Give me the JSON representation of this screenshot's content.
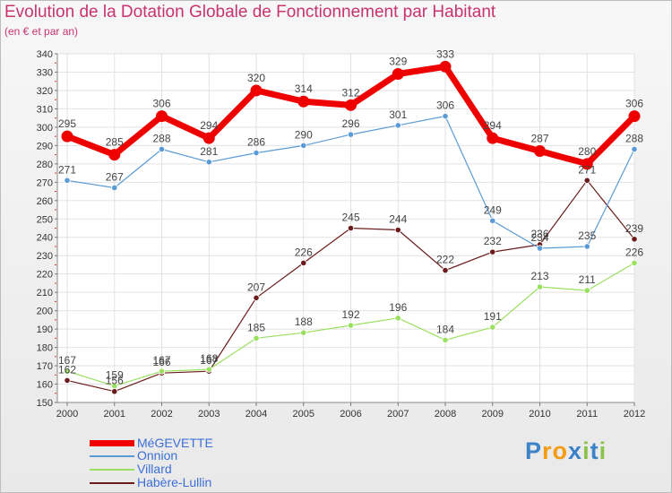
{
  "header": {
    "title": "Evolution de la Dotation Globale de Fonctionnement par Habitant",
    "subtitle": "(en € et par an)"
  },
  "logo": {
    "text": "Proxiti",
    "letters": [
      "P",
      "r",
      "o",
      "x",
      "i",
      "t",
      "i"
    ]
  },
  "chart_data": {
    "type": "line",
    "title": "Evolution de la Dotation Globale de Fonctionnement par Habitant",
    "subtitle": "(en € et par an)",
    "xlabel": "",
    "ylabel": "",
    "ylim": [
      150,
      340
    ],
    "ytick_step": 10,
    "grid": true,
    "legend_position": "bottom-left",
    "x": [
      "2000",
      "2001",
      "2002",
      "2003",
      "2004",
      "2005",
      "2006",
      "2007",
      "2008",
      "2009",
      "2010",
      "2011",
      "2012"
    ],
    "series": [
      {
        "name": "MéGEVETTE",
        "color": "#ee0000",
        "values": [
          295,
          285,
          306,
          294,
          320,
          314,
          312,
          329,
          333,
          294,
          287,
          280,
          306
        ]
      },
      {
        "name": "Onnion",
        "color": "#5b9bd5",
        "values": [
          271,
          267,
          288,
          281,
          286,
          290,
          296,
          301,
          306,
          249,
          234,
          235,
          288
        ]
      },
      {
        "name": "Villard",
        "color": "#99e05f",
        "values": [
          167,
          159,
          167,
          168,
          185,
          188,
          192,
          196,
          184,
          191,
          213,
          211,
          226
        ]
      },
      {
        "name": "Habère-Lullin",
        "color": "#6b1b1b",
        "values": [
          162,
          156,
          166,
          167,
          207,
          226,
          245,
          244,
          222,
          232,
          236,
          271,
          239
        ]
      }
    ]
  }
}
